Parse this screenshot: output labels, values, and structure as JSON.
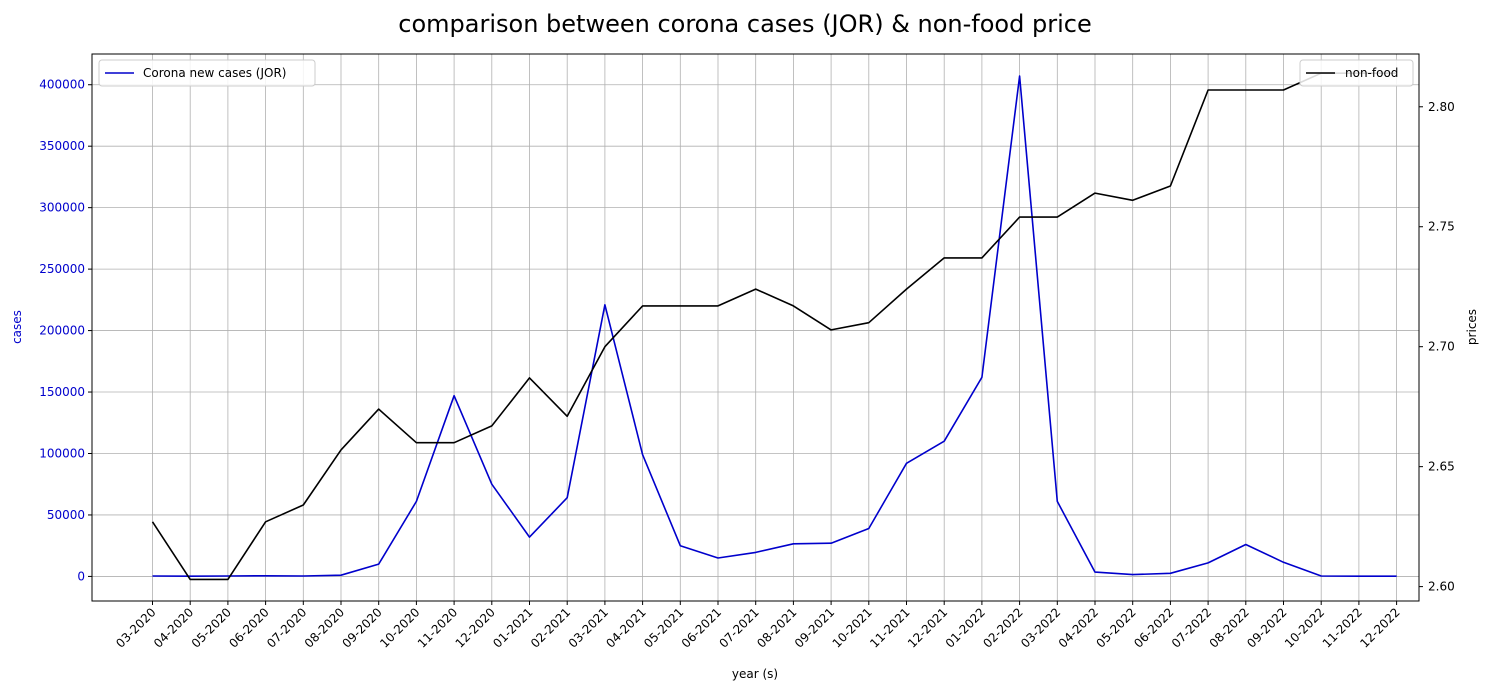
{
  "chart_data": {
    "type": "line",
    "title": "comparison between corona cases (JOR) & non-food price",
    "xlabel": "year (s)",
    "ylabel_left": "cases",
    "ylabel_right": "prices",
    "grid": true,
    "categories": [
      "03-2020",
      "04-2020",
      "05-2020",
      "06-2020",
      "07-2020",
      "08-2020",
      "09-2020",
      "10-2020",
      "11-2020",
      "12-2020",
      "01-2021",
      "02-2021",
      "03-2021",
      "04-2021",
      "05-2021",
      "06-2021",
      "07-2021",
      "08-2021",
      "09-2021",
      "10-2021",
      "11-2021",
      "12-2021",
      "01-2022",
      "02-2022",
      "03-2022",
      "04-2022",
      "05-2022",
      "06-2022",
      "07-2022",
      "08-2022",
      "09-2022",
      "10-2022",
      "11-2022",
      "12-2022"
    ],
    "y_left": {
      "range": [
        -20000,
        425000
      ],
      "ticks": [
        0,
        50000,
        100000,
        150000,
        200000,
        250000,
        300000,
        350000,
        400000
      ],
      "color": "#0000cc"
    },
    "y_right": {
      "range": [
        2.594,
        2.822
      ],
      "ticks": [
        "2.60",
        "2.65",
        "2.70",
        "2.75",
        "2.80"
      ],
      "tick_values": [
        2.6,
        2.65,
        2.7,
        2.75,
        2.8
      ],
      "color": "#000000"
    },
    "series": [
      {
        "name": "Corona new cases (JOR)",
        "axis": "left",
        "color": "#0000cc",
        "legend_position": "top-left",
        "values": [
          300,
          200,
          300,
          500,
          300,
          1000,
          10000,
          61000,
          147000,
          75000,
          32000,
          64000,
          221000,
          99000,
          25000,
          15000,
          19500,
          26500,
          27000,
          39000,
          92000,
          110000,
          162000,
          407000,
          61000,
          3500,
          1500,
          2500,
          11000,
          26000,
          11500,
          300,
          200,
          200
        ]
      },
      {
        "name": "non-food",
        "axis": "right",
        "color": "#000000",
        "legend_position": "top-right",
        "values": [
          2.627,
          2.603,
          2.603,
          2.627,
          2.634,
          2.657,
          2.674,
          2.66,
          2.66,
          2.667,
          2.687,
          2.671,
          2.7,
          2.717,
          2.717,
          2.717,
          2.724,
          2.717,
          2.707,
          2.71,
          2.724,
          2.737,
          2.737,
          2.754,
          2.754,
          2.764,
          2.761,
          2.767,
          2.807,
          2.807,
          2.807,
          2.814,
          2.814,
          2.814
        ]
      }
    ]
  }
}
